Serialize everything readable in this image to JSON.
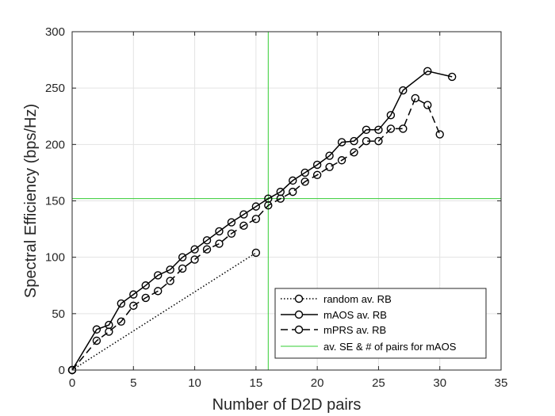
{
  "chart_data": {
    "type": "line",
    "title": "",
    "xlabel": "Number of D2D pairs",
    "ylabel": "Spectral Efficiency (bps/Hz)",
    "xlim": [
      0,
      35
    ],
    "ylim": [
      0,
      300
    ],
    "xticks": [
      0,
      5,
      10,
      15,
      20,
      25,
      30,
      35
    ],
    "yticks": [
      0,
      50,
      100,
      150,
      200,
      250,
      300
    ],
    "grid": true,
    "legend_position": "bottom-right",
    "series": [
      {
        "name": "random av. RB",
        "line_style": "dotted",
        "marker": "circle",
        "marker_indices": [
          0,
          1
        ],
        "color": "#000000",
        "x": [
          0,
          15
        ],
        "y": [
          0,
          104
        ]
      },
      {
        "name": "mAOS av. RB",
        "line_style": "solid",
        "marker": "circle",
        "color": "#000000",
        "x": [
          0,
          2,
          3,
          4,
          5,
          6,
          7,
          8,
          9,
          10,
          11,
          12,
          13,
          14,
          15,
          16,
          17,
          18,
          19,
          20,
          21,
          22,
          23,
          24,
          25,
          26,
          27,
          29,
          31
        ],
        "y": [
          0,
          36,
          40,
          59,
          67,
          75,
          84,
          89,
          100,
          107,
          115,
          123,
          131,
          138,
          145,
          152,
          158,
          168,
          175,
          182,
          190,
          202,
          203,
          213,
          213,
          226,
          248,
          265,
          260
        ]
      },
      {
        "name": "mPRS av. RB",
        "line_style": "dashed",
        "marker": "circle",
        "color": "#000000",
        "x": [
          0,
          2,
          3,
          4,
          5,
          6,
          7,
          8,
          9,
          10,
          11,
          12,
          13,
          14,
          15,
          16,
          17,
          18,
          19,
          20,
          21,
          22,
          23,
          24,
          25,
          26,
          27,
          28,
          29,
          30
        ],
        "y": [
          0,
          26,
          34,
          43,
          57,
          64,
          70,
          79,
          90,
          98,
          107,
          112,
          121,
          128,
          134,
          146,
          152,
          158,
          167,
          173,
          180,
          186,
          193,
          203,
          203,
          214,
          214,
          241,
          235,
          209
        ]
      }
    ],
    "reference_lines": {
      "name": "av. SE & # of pairs for mAOS",
      "color": "#33cc33",
      "x": 16,
      "y": 152
    }
  }
}
